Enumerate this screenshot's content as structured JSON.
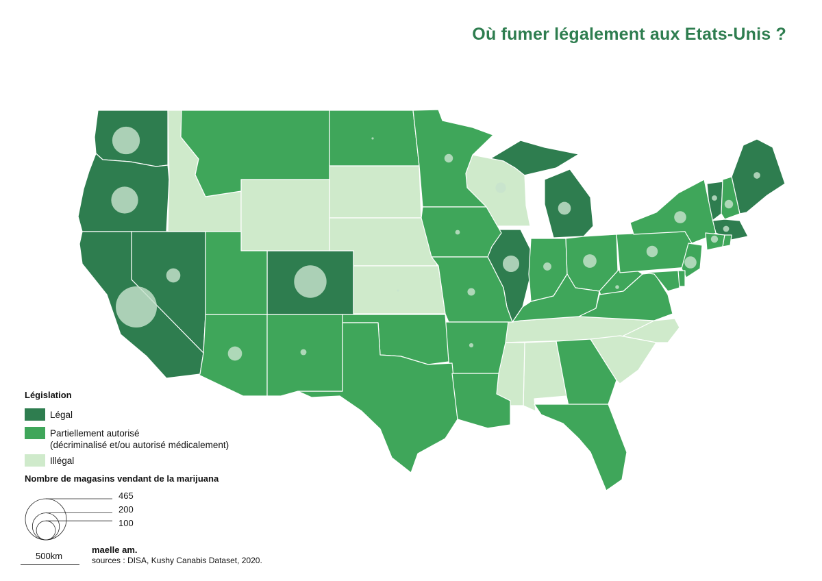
{
  "title": "Où fumer légalement aux Etats-Unis ?",
  "colors": {
    "legal": "#2e7d4f",
    "partial": "#3fa65a",
    "illegal": "#cfeacb",
    "bubble": "#c7e3cd",
    "title": "#2e7d4f"
  },
  "legend": {
    "heading": "Législation",
    "items": [
      {
        "key": "legal",
        "label": "Légal"
      },
      {
        "key": "partial",
        "label": "Partiellement autorisé",
        "label2": "(décriminalisé et/ou autorisé médicalement)"
      },
      {
        "key": "illegal",
        "label": "Illégal"
      }
    ]
  },
  "size_legend": {
    "heading": "Nombre de magasins vendant de la marijuana",
    "values": [
      465,
      200,
      100
    ]
  },
  "scalebar": {
    "label": "500km"
  },
  "credits": {
    "author": "maelle am.",
    "sources": "sources : DISA, Kushy Canabis Dataset, 2020."
  },
  "states": [
    {
      "id": "WA",
      "status": "legal",
      "stores": 210
    },
    {
      "id": "OR",
      "status": "legal",
      "stores": 200
    },
    {
      "id": "CA",
      "status": "legal",
      "stores": 465
    },
    {
      "id": "NV",
      "status": "legal",
      "stores": 55
    },
    {
      "id": "CO",
      "status": "legal",
      "stores": 290
    },
    {
      "id": "MI",
      "status": "legal",
      "stores": 45
    },
    {
      "id": "IL",
      "status": "legal",
      "stores": 75
    },
    {
      "id": "ME",
      "status": "legal",
      "stores": 12
    },
    {
      "id": "VT",
      "status": "legal",
      "stores": 8
    },
    {
      "id": "MA",
      "status": "legal",
      "stores": 10
    },
    {
      "id": "ID",
      "status": "illegal",
      "stores": 0
    },
    {
      "id": "WY",
      "status": "illegal",
      "stores": 0
    },
    {
      "id": "SD",
      "status": "illegal",
      "stores": 0
    },
    {
      "id": "NE",
      "status": "illegal",
      "stores": 0
    },
    {
      "id": "KS",
      "status": "illegal",
      "stores": 1
    },
    {
      "id": "WI",
      "status": "illegal",
      "stores": 30
    },
    {
      "id": "TN",
      "status": "illegal",
      "stores": 0
    },
    {
      "id": "AL",
      "status": "illegal",
      "stores": 0
    },
    {
      "id": "MS",
      "status": "illegal",
      "stores": 0
    },
    {
      "id": "NC",
      "status": "illegal",
      "stores": 0
    },
    {
      "id": "SC",
      "status": "illegal",
      "stores": 0
    },
    {
      "id": "MT",
      "status": "partial",
      "stores": 0
    },
    {
      "id": "ND",
      "status": "partial",
      "stores": 1
    },
    {
      "id": "MN",
      "status": "partial",
      "stores": 20
    },
    {
      "id": "IA",
      "status": "partial",
      "stores": 6
    },
    {
      "id": "MO",
      "status": "partial",
      "stores": 16
    },
    {
      "id": "AR",
      "status": "partial",
      "stores": 5
    },
    {
      "id": "OK",
      "status": "partial",
      "stores": 0
    },
    {
      "id": "TX",
      "status": "partial",
      "stores": 0
    },
    {
      "id": "LA",
      "status": "partial",
      "stores": 0
    },
    {
      "id": "UT",
      "status": "partial",
      "stores": 0
    },
    {
      "id": "AZ",
      "status": "partial",
      "stores": 55
    },
    {
      "id": "NM",
      "status": "partial",
      "stores": 10
    },
    {
      "id": "IN",
      "status": "partial",
      "stores": 18
    },
    {
      "id": "OH",
      "status": "partial",
      "stores": 50
    },
    {
      "id": "KY",
      "status": "partial",
      "stores": 0
    },
    {
      "id": "WV",
      "status": "partial",
      "stores": 4
    },
    {
      "id": "VA",
      "status": "partial",
      "stores": 0
    },
    {
      "id": "PA",
      "status": "partial",
      "stores": 35
    },
    {
      "id": "NY",
      "status": "partial",
      "stores": 40
    },
    {
      "id": "NJ",
      "status": "partial",
      "stores": 40
    },
    {
      "id": "GA",
      "status": "partial",
      "stores": 0
    },
    {
      "id": "FL",
      "status": "partial",
      "stores": 0
    },
    {
      "id": "NH",
      "status": "partial",
      "stores": 20
    },
    {
      "id": "CT",
      "status": "partial",
      "stores": 14
    },
    {
      "id": "RI",
      "status": "partial",
      "stores": 0
    },
    {
      "id": "DE",
      "status": "partial",
      "stores": 0
    },
    {
      "id": "MD",
      "status": "partial",
      "stores": 0
    }
  ]
}
